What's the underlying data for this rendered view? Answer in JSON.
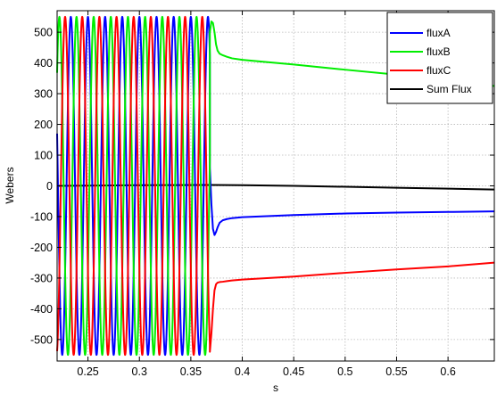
{
  "chart_data": {
    "type": "line",
    "title": "",
    "xlabel": "s",
    "ylabel": "Webers",
    "xlim": [
      0.22,
      0.645
    ],
    "ylim": [
      -570,
      570
    ],
    "x_ticks": [
      0.25,
      0.3,
      0.35,
      0.4,
      0.45,
      0.5,
      0.55,
      0.6
    ],
    "x_tick_labels": [
      "0.25",
      "0.3",
      "0.35",
      "0.4",
      "0.45",
      "0.5",
      "0.55",
      "0.6"
    ],
    "y_ticks": [
      -500,
      -400,
      -300,
      -200,
      -100,
      0,
      100,
      200,
      300,
      400,
      500
    ],
    "y_tick_labels": [
      "-500",
      "-400",
      "-300",
      "-200",
      "-100",
      "0",
      "100",
      "200",
      "300",
      "400",
      "500"
    ],
    "grid": true,
    "legend_position": "top-right",
    "oscillation": {
      "amplitude": 550,
      "frequency_hz": 60,
      "end_time": 0.3685
    },
    "series": [
      {
        "name": "fluxA",
        "color": "#0000ff",
        "phase_deg": 0,
        "x": [
          0.3685,
          0.37,
          0.3715,
          0.373,
          0.3745,
          0.376,
          0.378,
          0.381,
          0.385,
          0.39,
          0.4,
          0.45,
          0.5,
          0.55,
          0.6,
          0.645
        ],
        "y": [
          60,
          -60,
          -140,
          -160,
          -150,
          -135,
          -120,
          -112,
          -108,
          -105,
          -102,
          -95,
          -90,
          -87,
          -85,
          -83
        ]
      },
      {
        "name": "fluxB",
        "color": "#00ee00",
        "phase_deg": -120,
        "x": [
          0.3685,
          0.37,
          0.3715,
          0.373,
          0.3745,
          0.376,
          0.378,
          0.381,
          0.385,
          0.39,
          0.4,
          0.45,
          0.5,
          0.55,
          0.6,
          0.645
        ],
        "y": [
          500,
          535,
          530,
          500,
          460,
          440,
          430,
          425,
          420,
          415,
          410,
          395,
          378,
          362,
          345,
          325
        ]
      },
      {
        "name": "fluxC",
        "color": "#ff0000",
        "phase_deg": 120,
        "x": [
          0.3685,
          0.37,
          0.3715,
          0.373,
          0.3745,
          0.376,
          0.378,
          0.381,
          0.385,
          0.39,
          0.4,
          0.45,
          0.5,
          0.55,
          0.6,
          0.645
        ],
        "y": [
          -540,
          -480,
          -400,
          -340,
          -320,
          -315,
          -313,
          -312,
          -310,
          -308,
          -305,
          -295,
          -283,
          -272,
          -262,
          -250
        ]
      },
      {
        "name": "Sum Flux",
        "color": "#000000",
        "phase_deg": null,
        "x": [
          0.22,
          0.3,
          0.3685,
          0.4,
          0.45,
          0.5,
          0.55,
          0.6,
          0.645
        ],
        "y": [
          0,
          2,
          3,
          2,
          0,
          -3,
          -6,
          -9,
          -12
        ]
      }
    ]
  }
}
